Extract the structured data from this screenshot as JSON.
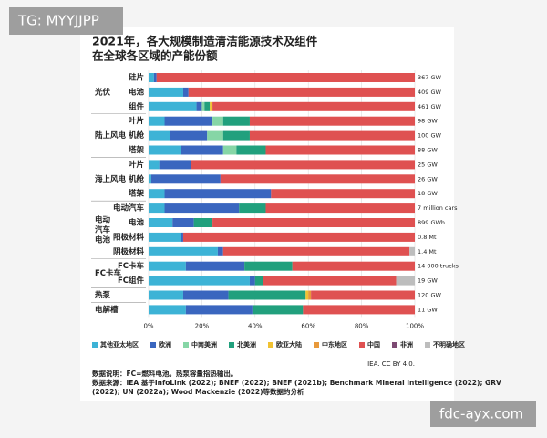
{
  "watermark_top": "TG: MYYJJPP",
  "watermark_bottom": "fdc-ayx.com",
  "chart_data": {
    "type": "bar",
    "orientation": "horizontal",
    "stacked": true,
    "title": [
      "2021年，各大规模制造清洁能源技术及组件",
      "在全球各区域的产能份额"
    ],
    "groups": [
      {
        "label": [
          "光伏"
        ],
        "categories": [
          "硅片",
          "电池",
          "组件"
        ],
        "totals": [
          "367 GW",
          "409 GW",
          "461 GW"
        ]
      },
      {
        "label": [
          "陆上风电"
        ],
        "categories": [
          "叶片",
          "机舱",
          "塔架"
        ],
        "totals": [
          "98 GW",
          "100 GW",
          "88 GW"
        ]
      },
      {
        "label": [
          "海上风电"
        ],
        "categories": [
          "叶片",
          "机舱",
          "塔架"
        ],
        "totals": [
          "25 GW",
          "26 GW",
          "18 GW"
        ]
      },
      {
        "label": [
          "电动",
          "汽车",
          "电池"
        ],
        "categories": [
          "电动汽车",
          "电池",
          "阳极材料",
          "阴极材料"
        ],
        "totals": [
          "7 million cars",
          "899 GWh",
          "0.8 Mt",
          "1.4 Mt"
        ]
      },
      {
        "label": [
          "FC卡车"
        ],
        "categories": [
          "FC卡车",
          "FC组件"
        ],
        "totals": [
          "14 000 trucks",
          "19 GW"
        ]
      },
      {
        "label": [
          "热泵"
        ],
        "categories": [
          null
        ],
        "totals": [
          "120 GW"
        ]
      },
      {
        "label": [
          "电解槽"
        ],
        "categories": [
          null
        ],
        "totals": [
          "11 GW"
        ]
      }
    ],
    "series": [
      {
        "name": "其他亚太地区",
        "color": "#3db3d6",
        "values": [
          2,
          13,
          18,
          6,
          8,
          12,
          4,
          1,
          6,
          6,
          9,
          12,
          26,
          14,
          38,
          13,
          14
        ]
      },
      {
        "name": "欧洲",
        "color": "#3a66bf",
        "values": [
          1,
          2,
          2,
          18,
          14,
          16,
          12,
          26,
          40,
          28,
          8,
          1,
          2,
          22,
          2,
          17,
          25
        ]
      },
      {
        "name": "中南美洲",
        "color": "#86d6a6",
        "values": [
          0,
          0,
          1,
          4,
          6,
          5,
          0,
          0,
          0,
          0,
          0,
          0,
          0,
          0,
          0,
          0,
          0
        ]
      },
      {
        "name": "北美洲",
        "color": "#21a07d",
        "values": [
          0,
          0,
          2,
          10,
          10,
          11,
          0,
          0,
          0,
          10,
          7,
          0,
          0,
          18,
          3,
          29,
          19
        ]
      },
      {
        "name": "欧亚大陆",
        "color": "#f1c232",
        "values": [
          0,
          0,
          1,
          0,
          0,
          0,
          0,
          0,
          0,
          0,
          0,
          0,
          0,
          0,
          0,
          1,
          0
        ]
      },
      {
        "name": "中东地区",
        "color": "#e8993b",
        "values": [
          0,
          0,
          0,
          0,
          0,
          0,
          0,
          0,
          0,
          0,
          0,
          0,
          0,
          0,
          0,
          1,
          0
        ]
      },
      {
        "name": "中国",
        "color": "#df5151",
        "values": [
          97,
          85,
          76,
          62,
          62,
          56,
          84,
          73,
          54,
          56,
          76,
          87,
          70,
          46,
          50,
          39,
          42
        ]
      },
      {
        "name": "非洲",
        "color": "#7d4a73",
        "values": [
          0,
          0,
          0,
          0,
          0,
          0,
          0,
          0,
          0,
          0,
          0,
          0,
          0,
          0,
          0,
          0,
          0
        ]
      },
      {
        "name": "不明确地区",
        "color": "#bdbdbd",
        "values": [
          0,
          0,
          0,
          0,
          0,
          0,
          0,
          0,
          0,
          0,
          0,
          0,
          2,
          0,
          7,
          0,
          0
        ]
      }
    ],
    "xlim": [
      0,
      100
    ],
    "xticks": [
      {
        "value": 0,
        "label": "0%"
      },
      {
        "value": 20,
        "label": "20%"
      },
      {
        "value": 40,
        "label": "40%"
      },
      {
        "value": 60,
        "label": "60%"
      },
      {
        "value": 80,
        "label": "80%"
      },
      {
        "value": 100,
        "label": "100%"
      }
    ],
    "grid": true,
    "credit": "IEA. CC BY 4.0.",
    "notes": [
      "数据说明：FC=燃料电池。热泵容量指热输出。",
      "数据来源：IEA 基于InfoLink (2022); BNEF (2022); BNEF (2021b); Benchmark Mineral Intelligence (2022); GRV",
      "(2022); UN (2022a); Wood Mackenzie (2022)等数据的分析"
    ]
  }
}
